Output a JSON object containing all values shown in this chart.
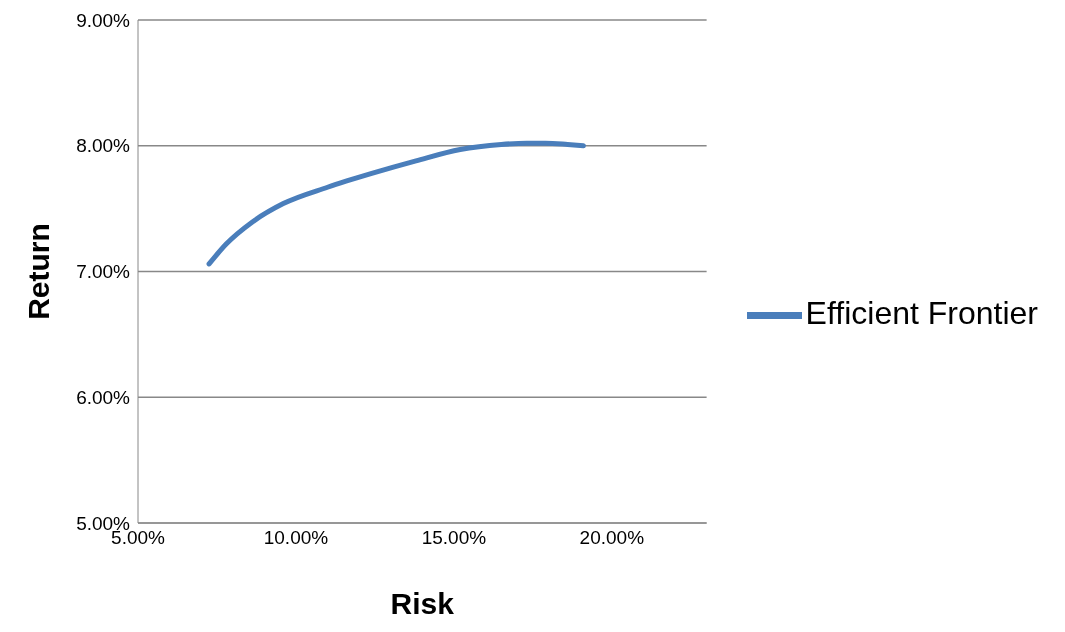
{
  "chart_data": {
    "type": "line",
    "xlabel": "Risk",
    "ylabel": "Return",
    "x": [
      7.25,
      7.8,
      8.6,
      9.6,
      11.0,
      12.4,
      13.8,
      15.2,
      16.5,
      17.3,
      17.9,
      18.6,
      19.1
    ],
    "series": [
      {
        "name": "Efficient Frontier",
        "color": "#4a7ebb",
        "values": [
          7.06,
          7.22,
          7.39,
          7.54,
          7.67,
          7.78,
          7.88,
          7.97,
          8.01,
          8.02,
          8.02,
          8.01,
          8.0
        ]
      }
    ],
    "xlim": [
      5,
      23
    ],
    "xticks": [
      {
        "value": 5,
        "label": "5.00%"
      },
      {
        "value": 10,
        "label": "10.00%"
      },
      {
        "value": 15,
        "label": "15.00%"
      },
      {
        "value": 20,
        "label": "20.00%"
      }
    ],
    "ylim": [
      5,
      9
    ],
    "yticks": [
      {
        "value": 5,
        "label": "5.00%"
      },
      {
        "value": 6,
        "label": "6.00%"
      },
      {
        "value": 7,
        "label": "7.00%"
      },
      {
        "value": 8,
        "label": "8.00%"
      },
      {
        "value": 9,
        "label": "9.00%"
      }
    ],
    "grid": "y",
    "legend": "right",
    "marker": "none",
    "line_style": "solid"
  }
}
